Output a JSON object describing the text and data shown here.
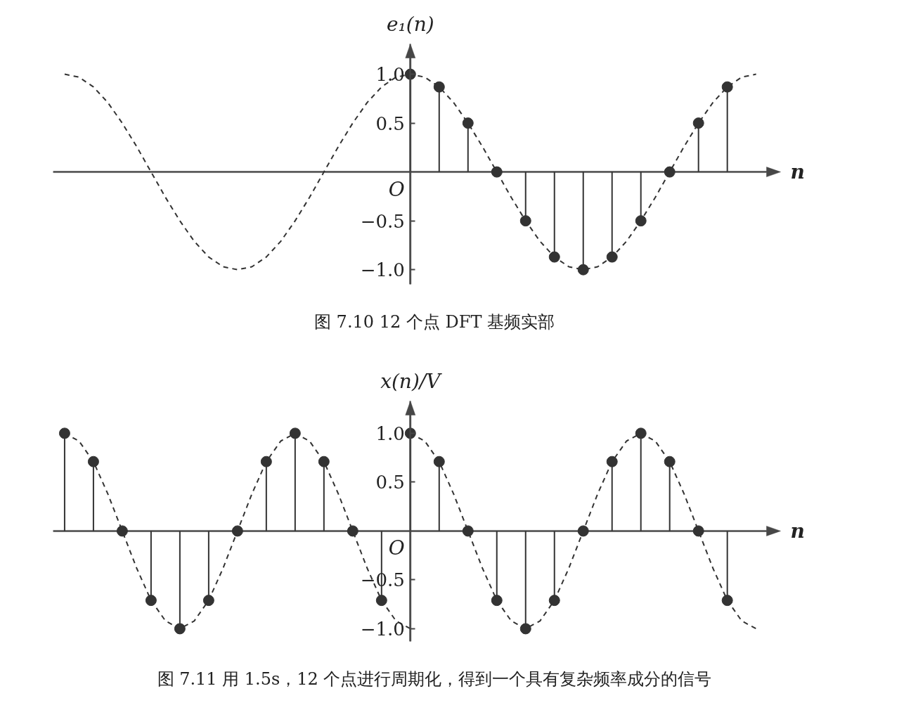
{
  "chart_data": [
    {
      "type": "lollipop",
      "title": "图 7.10 12 个点 DFT 基频实部",
      "xlabel": "n",
      "ylabel": "e₁(n)",
      "categories": [
        null,
        null,
        null,
        null,
        null,
        null,
        null,
        null,
        null,
        null,
        null,
        null,
        null,
        null,
        null,
        null,
        null,
        null,
        null,
        null,
        null,
        null,
        null,
        null,
        null,
        null,
        null,
        null,
        null,
        null,
        null,
        null,
        null,
        null,
        null,
        null,
        null,
        null,
        null,
        null,
        null,
        null,
        null,
        null,
        null,
        null,
        null,
        null,
        null
      ],
      "ylim": [
        -1.15,
        1.31
      ],
      "yticks": [
        {
          "value": -1,
          "label": "−1.0"
        },
        {
          "value": -0.5,
          "label": "−0.5"
        },
        {
          "value": 0.5,
          "label": "0.5"
        },
        {
          "value": 1,
          "label": "1.0"
        }
      ],
      "grid": false,
      "annotations": [
        "O"
      ],
      "series": [
        {
          "type": "line",
          "color": "#333333",
          "line_style": "dashed",
          "values": [
            1,
            0.97,
            0.87,
            0.71,
            0.5,
            0.26,
            0,
            -0.26,
            -0.5,
            -0.71,
            -0.87,
            -0.97,
            -1,
            -0.97,
            -0.87,
            -0.71,
            -0.5,
            -0.26,
            0,
            0.26,
            0.5,
            0.71,
            0.87,
            0.97,
            1,
            0.97,
            0.87,
            0.71,
            0.5,
            0.26,
            0,
            -0.26,
            -0.5,
            -0.71,
            -0.87,
            -0.97,
            -1,
            -0.97,
            -0.87,
            -0.71,
            -0.5,
            -0.26,
            0,
            0.26,
            0.5,
            0.71,
            0.87,
            0.97,
            1
          ]
        },
        {
          "color": "#333333",
          "marker": "circle",
          "values": [
            null,
            null,
            null,
            null,
            null,
            null,
            null,
            null,
            null,
            null,
            null,
            null,
            null,
            null,
            null,
            null,
            null,
            null,
            null,
            null,
            null,
            null,
            null,
            null,
            1,
            null,
            0.87,
            null,
            0.5,
            null,
            0,
            null,
            -0.5,
            null,
            -0.87,
            null,
            -1,
            null,
            -0.87,
            null,
            -0.5,
            null,
            0,
            null,
            0.5,
            null,
            0.87,
            null,
            null
          ]
        }
      ]
    },
    {
      "type": "lollipop",
      "title": "图 7.11 用 1.5s，12 个点进行周期化，得到一个具有复杂频率成分的信号",
      "xlabel": "n",
      "ylabel": "x(n)/V",
      "categories": [
        null,
        null,
        null,
        null,
        null,
        null,
        null,
        null,
        null,
        null,
        null,
        null,
        null,
        null,
        null,
        null,
        null,
        null,
        null,
        null,
        null,
        null,
        null,
        null,
        null,
        null,
        null,
        null,
        null,
        null,
        null,
        null,
        null,
        null,
        null,
        null,
        null,
        null,
        null,
        null,
        null,
        null,
        null,
        null,
        null,
        null,
        null,
        null,
        null
      ],
      "ylim": [
        -1.13,
        1.33
      ],
      "yticks": [
        {
          "value": -1,
          "label": "−1.0"
        },
        {
          "value": -0.5,
          "label": "−0.5"
        },
        {
          "value": 0.5,
          "label": "0.5"
        },
        {
          "value": 1,
          "label": "1.0"
        }
      ],
      "grid": false,
      "annotations": [
        "O"
      ],
      "series": [
        {
          "type": "line",
          "color": "#333333",
          "line_style": "dashed",
          "values": [
            1,
            0.92,
            0.71,
            0.38,
            0,
            -0.38,
            -0.71,
            -0.92,
            -1,
            -0.92,
            -0.71,
            -0.38,
            0,
            0.38,
            0.71,
            0.92,
            1,
            0.92,
            0.71,
            0.38,
            0,
            -0.38,
            -0.71,
            -0.92,
            -1,
            null,
            null,
            null,
            null,
            null,
            null,
            null,
            null,
            null,
            null,
            null,
            null,
            null,
            null,
            null,
            null,
            null,
            null,
            null,
            null,
            null,
            null,
            null,
            null
          ]
        },
        {
          "type": "line",
          "color": "#333333",
          "line_style": "dashed",
          "values": [
            null,
            null,
            null,
            null,
            null,
            null,
            null,
            null,
            null,
            null,
            null,
            null,
            null,
            null,
            null,
            null,
            null,
            null,
            null,
            null,
            null,
            null,
            null,
            null,
            1,
            0.92,
            0.71,
            0.38,
            0,
            -0.38,
            -0.71,
            -0.92,
            -1,
            -0.92,
            -0.71,
            -0.38,
            0,
            0.38,
            0.71,
            0.92,
            1,
            0.92,
            0.71,
            0.38,
            0,
            -0.38,
            -0.71,
            -0.92,
            -1
          ]
        },
        {
          "color": "#333333",
          "marker": "circle",
          "values": [
            1,
            null,
            0.71,
            null,
            0,
            null,
            -0.71,
            null,
            -1,
            null,
            -0.71,
            null,
            0,
            null,
            0.71,
            null,
            1,
            null,
            0.71,
            null,
            0,
            null,
            -0.71,
            null,
            1,
            null,
            0.71,
            null,
            0,
            null,
            -0.71,
            null,
            -1,
            null,
            -0.71,
            null,
            0,
            null,
            0.71,
            null,
            1,
            null,
            0.71,
            null,
            0,
            null,
            -0.71,
            null,
            null
          ]
        }
      ]
    }
  ]
}
